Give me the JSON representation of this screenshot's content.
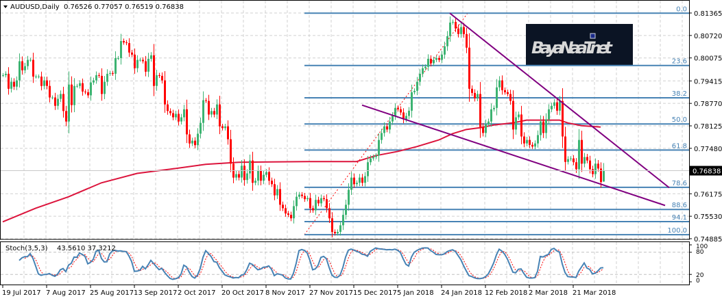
{
  "header": {
    "symbol": "AUDUSD,Daily",
    "ohlc_text": "0.76526 0.77057 0.76519 0.76838",
    "menu_icon": "triangle-down-icon"
  },
  "logo": {
    "text": "BayaNaaT.net",
    "background": "#0b1424"
  },
  "colors": {
    "bull": "#3CB371",
    "bear": "#FF0000",
    "ma": "#DC143C",
    "fib": "#4682B4",
    "trendline": "#800080",
    "fib_anchor": "#FF0000",
    "grid": "#d0d0d0",
    "stoch_main": "#4682B4",
    "stoch_signal": "#FF0000",
    "current_price_bg": "#000000"
  },
  "chart_data": [
    {
      "type": "candlestick",
      "title": "AUDUSD,Daily",
      "grid": true,
      "ylim": [
        0.74885,
        0.81365
      ],
      "y_ticks": [
        "0.81365",
        "0.80720",
        "0.80075",
        "0.79415",
        "0.78770",
        "0.78125",
        "0.77480",
        "0.76175",
        "0.75530",
        "0.74885"
      ],
      "current_price": "0.76838",
      "last_bar": {
        "open": 0.76526,
        "high": 0.77057,
        "low": 0.76519,
        "close": 0.76838
      },
      "x_ticks": [
        {
          "label": "19 Jul 2017",
          "bar": 0
        },
        {
          "label": "7 Aug 2017",
          "bar": 16
        },
        {
          "label": "25 Aug 2017",
          "bar": 32
        },
        {
          "label": "13 Sep 2017",
          "bar": 48
        },
        {
          "label": "2 Oct 2017",
          "bar": 64
        },
        {
          "label": "20 Oct 2017",
          "bar": 80
        },
        {
          "label": "8 Nov 2017",
          "bar": 96
        },
        {
          "label": "27 Nov 2017",
          "bar": 112
        },
        {
          "label": "15 Dec 2017",
          "bar": 128
        },
        {
          "label": "5 Jan 2018",
          "bar": 144
        },
        {
          "label": "24 Jan 2018",
          "bar": 160
        },
        {
          "label": "12 Feb 2018",
          "bar": 176
        },
        {
          "label": "2 Mar 2018",
          "bar": 192
        },
        {
          "label": "21 Mar 2018",
          "bar": 208
        }
      ],
      "closes": [
        0.7958,
        0.7962,
        0.7919,
        0.7939,
        0.7925,
        0.7943,
        0.7998,
        0.7972,
        0.7984,
        0.8002,
        0.8002,
        0.7954,
        0.7954,
        0.7954,
        0.7927,
        0.7943,
        0.7927,
        0.7894,
        0.7894,
        0.787,
        0.789,
        0.7904,
        0.7855,
        0.7825,
        0.7931,
        0.7872,
        0.7927,
        0.7927,
        0.7935,
        0.7911,
        0.7909,
        0.79,
        0.7937,
        0.7943,
        0.7958,
        0.7956,
        0.7904,
        0.7939,
        0.7962,
        0.7964,
        0.7962,
        0.8007,
        0.8007,
        0.8056,
        0.8052,
        0.805,
        0.8023,
        0.8017,
        0.7978,
        0.8002,
        0.8002,
        0.7998,
        0.7968,
        0.8005,
        0.8015,
        0.7927,
        0.7958,
        0.7956,
        0.7943,
        0.7874,
        0.7855,
        0.7849,
        0.7837,
        0.7847,
        0.7825,
        0.7837,
        0.786,
        0.7788,
        0.7762,
        0.777,
        0.7757,
        0.779,
        0.7821,
        0.7886,
        0.7884,
        0.7845,
        0.7855,
        0.7845,
        0.7874,
        0.7811,
        0.7806,
        0.7811,
        0.7774,
        0.7704,
        0.7664,
        0.7674,
        0.7664,
        0.7698,
        0.7657,
        0.7676,
        0.7713,
        0.7649,
        0.7655,
        0.7684,
        0.7655,
        0.7672,
        0.768,
        0.7655,
        0.7645,
        0.7613,
        0.7631,
        0.7586,
        0.7576,
        0.7561,
        0.7557,
        0.7547,
        0.7582,
        0.7609,
        0.7615,
        0.7611,
        0.7602,
        0.7605,
        0.7576,
        0.757,
        0.76,
        0.759,
        0.7605,
        0.7602,
        0.7576,
        0.7547,
        0.7508,
        0.7504,
        0.7508,
        0.7527,
        0.7557,
        0.7586,
        0.7629,
        0.7664,
        0.7645,
        0.7649,
        0.7664,
        0.7649,
        0.7668,
        0.7708,
        0.7719,
        0.7723,
        0.7727,
        0.7772,
        0.7792,
        0.7811,
        0.7802,
        0.7825,
        0.7841,
        0.7864,
        0.786,
        0.7851,
        0.7831,
        0.7841,
        0.7856,
        0.7909,
        0.7913,
        0.7939,
        0.7962,
        0.7978,
        0.7982,
        0.8005,
        0.7992,
        0.8002,
        0.8007,
        0.8002,
        0.8017,
        0.8041,
        0.807,
        0.8109,
        0.8111,
        0.8092,
        0.8076,
        0.8096,
        0.8076,
        0.8037,
        0.7919,
        0.7907,
        0.7892,
        0.7904,
        0.7809,
        0.7792,
        0.7817,
        0.7825,
        0.786,
        0.7864,
        0.7923,
        0.7943,
        0.7915,
        0.7909,
        0.7904,
        0.7884,
        0.7802,
        0.7837,
        0.7845,
        0.7782,
        0.7762,
        0.7772,
        0.7758,
        0.7753,
        0.7762,
        0.7786,
        0.7825,
        0.7792,
        0.7831,
        0.786,
        0.787,
        0.788,
        0.7856,
        0.7884,
        0.7782,
        0.7709,
        0.7717,
        0.7719,
        0.7708,
        0.7688,
        0.7772,
        0.7704,
        0.7723,
        0.7713,
        0.7688,
        0.7674,
        0.7704,
        0.769,
        0.7651,
        0.76838
      ],
      "moving_average": [
        [
          0,
          0.7537
        ],
        [
          12,
          0.7576
        ],
        [
          24,
          0.7609
        ],
        [
          36,
          0.7649
        ],
        [
          49,
          0.7676
        ],
        [
          61,
          0.7688
        ],
        [
          74,
          0.7702
        ],
        [
          86,
          0.7708
        ],
        [
          111,
          0.771
        ],
        [
          129,
          0.771
        ],
        [
          136,
          0.7727
        ],
        [
          144,
          0.7739
        ],
        [
          151,
          0.7753
        ],
        [
          159,
          0.7772
        ],
        [
          164,
          0.779
        ],
        [
          169,
          0.7802
        ],
        [
          174,
          0.7807
        ],
        [
          179,
          0.7815
        ],
        [
          186,
          0.7821
        ],
        [
          191,
          0.7829
        ],
        [
          199,
          0.7829
        ],
        [
          203,
          0.7829
        ],
        [
          206,
          0.7821
        ],
        [
          211,
          0.7813
        ],
        [
          218,
          0.7809
        ]
      ],
      "fibonacci": {
        "high": 0.8136,
        "low": 0.75,
        "anchor": {
          "from": [
            110,
            0.75
          ],
          "to": [
            169.5,
            0.8136
          ]
        },
        "start_bar": 110,
        "levels": [
          {
            "label": "0.0",
            "ratio": 0.0
          },
          {
            "label": "23.6",
            "ratio": 0.236
          },
          {
            "label": "38.2",
            "ratio": 0.382
          },
          {
            "label": "50.0",
            "ratio": 0.5
          },
          {
            "label": "61.8",
            "ratio": 0.618
          },
          {
            "label": "78.6",
            "ratio": 0.786
          },
          {
            "label": "88.6",
            "ratio": 0.886
          },
          {
            "label": "94.1",
            "ratio": 0.941
          },
          {
            "label": "100.0",
            "ratio": 1.0
          }
        ]
      },
      "trendlines": [
        {
          "from": [
            163,
            0.8136
          ],
          "to": [
            243,
            0.7635
          ]
        },
        {
          "from": [
            131,
            0.7872
          ],
          "to": [
            241.5,
            0.7584
          ]
        }
      ]
    },
    {
      "type": "line",
      "title": "Stoch(3,5,3)",
      "readout": "43.5610 37.3212",
      "ylim": [
        0,
        100
      ],
      "y_ticks": [
        "100",
        "80",
        "20",
        "0"
      ],
      "levels": [
        80,
        20
      ],
      "k_period": 5,
      "slowing": 3,
      "d_period": 3
    }
  ]
}
